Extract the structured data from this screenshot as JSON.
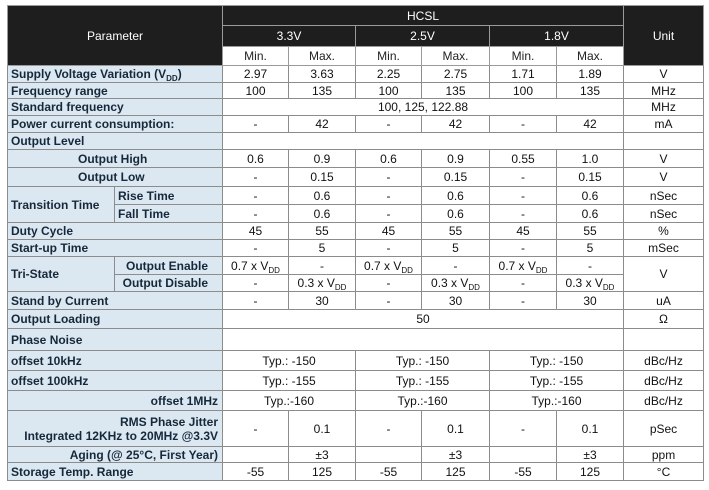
{
  "header": {
    "parameter": "Parameter",
    "group": "HCSL",
    "voltages": [
      "3.3V",
      "2.5V",
      "1.8V"
    ],
    "unit": "Unit",
    "subheaders": [
      "Min.",
      "Max.",
      "Min.",
      "Max.",
      "Min.",
      "Max."
    ]
  },
  "rows": [
    {
      "label": {
        "text": "Supply Voltage Variation (V",
        "sub": "DD",
        "tail": ")"
      },
      "values": [
        "2.97",
        "3.63",
        "2.25",
        "2.75",
        "1.71",
        "1.89"
      ],
      "unit": "V"
    },
    {
      "label": "Frequency range",
      "values": [
        "100",
        "135",
        "100",
        "135",
        "100",
        "135"
      ],
      "unit": "MHz"
    },
    {
      "label": "Standard frequency",
      "values": [
        "100, 125, 122.88"
      ],
      "unit": "MHz"
    },
    {
      "label": "Power current consumption:",
      "values": [
        "-",
        "42",
        "-",
        "42",
        "-",
        "42"
      ],
      "unit": "mA"
    },
    {
      "label": "Output Level"
    },
    {
      "label": "Output High",
      "values": [
        "0.6",
        "0.9",
        "0.6",
        "0.9",
        "0.55",
        "1.0"
      ],
      "unit": "V"
    },
    {
      "label": "Output Low",
      "values": [
        "-",
        "0.15",
        "-",
        "0.15",
        "-",
        "0.15"
      ],
      "unit": "V"
    },
    {
      "group": "Transition Time",
      "rows": [
        {
          "label": "Rise Time",
          "values": [
            "-",
            "0.6",
            "-",
            "0.6",
            "-",
            "0.6"
          ],
          "unit": "nSec"
        },
        {
          "label": "Fall Time",
          "values": [
            "-",
            "0.6",
            "-",
            "0.6",
            "-",
            "0.6"
          ],
          "unit": "nSec"
        }
      ]
    },
    {
      "label": "Duty Cycle",
      "values": [
        "45",
        "55",
        "45",
        "55",
        "45",
        "55"
      ],
      "unit": "%"
    },
    {
      "label": "Start-up Time",
      "values": [
        "-",
        "5",
        "-",
        "5",
        "-",
        "5"
      ],
      "unit": "mSec"
    },
    {
      "group": "Tri-State",
      "unit": "V",
      "rows": [
        {
          "label": "Output Enable",
          "values": [
            {
              "text": "0.7 x V",
              "sub": "DD"
            },
            "-",
            {
              "text": "0.7 x V",
              "sub": "DD"
            },
            "-",
            {
              "text": "0.7 x V",
              "sub": "DD"
            },
            "-"
          ]
        },
        {
          "label": "Output Disable",
          "values": [
            "-",
            {
              "text": "0.3 x V",
              "sub": "DD"
            },
            "-",
            {
              "text": "0.3 x V",
              "sub": "DD"
            },
            "-",
            {
              "text": "0.3 x V",
              "sub": "DD"
            }
          ]
        }
      ]
    },
    {
      "label": "Stand by Current",
      "values": [
        "-",
        "30",
        "-",
        "30",
        "-",
        "30"
      ],
      "unit": "uA"
    },
    {
      "label": "Output Loading",
      "values": [
        "50"
      ],
      "unit": "Ω"
    },
    {
      "label": "Phase Noise"
    },
    {
      "label": "offset 10kHz",
      "values": [
        "Typ.: -150",
        "Typ.: -150",
        "Typ.: -150"
      ],
      "unit": "dBc/Hz"
    },
    {
      "label": "offset 100kHz",
      "values": [
        "Typ.: -155",
        "Typ.: -155",
        "Typ.: -155"
      ],
      "unit": "dBc/Hz"
    },
    {
      "label": "offset 1MHz",
      "values": [
        "Typ.:-160",
        "Typ.:-160",
        "Typ.:-160"
      ],
      "unit": "dBc/Hz"
    },
    {
      "label": [
        "RMS Phase Jitter",
        "Integrated 12KHz to 20MHz @3.3V"
      ],
      "values": [
        "-",
        "0.1",
        "-",
        "0.1",
        "-",
        "0.1"
      ],
      "unit": "pSec"
    },
    {
      "label": "Aging (@ 25°C, First Year)",
      "values": [
        null,
        "±3",
        null,
        "±3",
        null,
        "±3"
      ],
      "unit": "ppm"
    },
    {
      "label": "Storage Temp. Range",
      "values": [
        "-55",
        "125",
        "-55",
        "125",
        "-55",
        "125"
      ],
      "unit": "°C"
    }
  ]
}
